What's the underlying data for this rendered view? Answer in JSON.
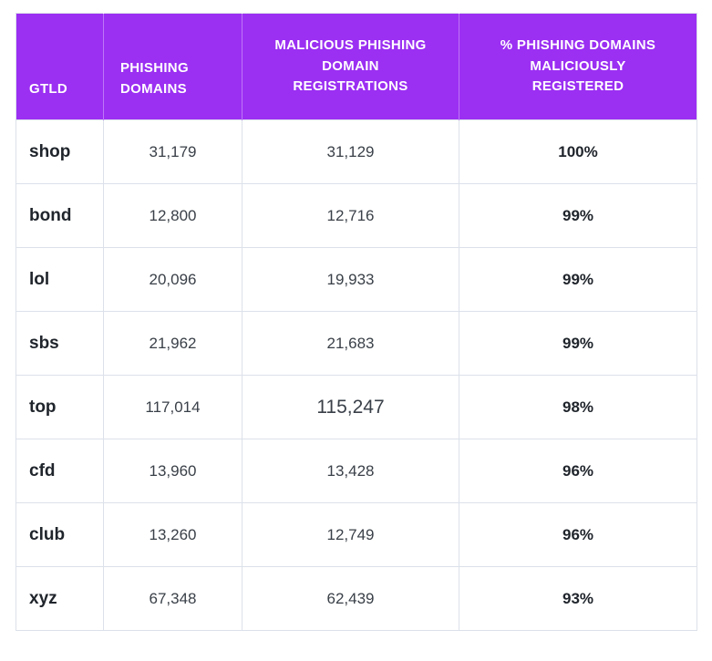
{
  "colors": {
    "header_bg": "#9b2ff2",
    "header_text": "#ffffff",
    "border": "#dce1ea",
    "body_text": "#3a4048",
    "emphasis_text": "#20252c"
  },
  "chart_data": {
    "type": "table",
    "columns": [
      "GTLD",
      "PHISHING DOMAINS",
      "MALICIOUS PHISHING DOMAIN REGISTRATIONS",
      "% PHISHING DOMAINS MALICIOUSLY REGISTERED"
    ],
    "rows": [
      [
        "shop",
        "31,179",
        "31,129",
        "100%"
      ],
      [
        "bond",
        "12,800",
        "12,716",
        "99%"
      ],
      [
        "lol",
        "20,096",
        "19,933",
        "99%"
      ],
      [
        "sbs",
        "21,962",
        "21,683",
        "99%"
      ],
      [
        "top",
        "117,014",
        "115,247",
        "98%"
      ],
      [
        "cfd",
        "13,960",
        "13,428",
        "96%"
      ],
      [
        "club",
        "13,260",
        "12,749",
        "96%"
      ],
      [
        "xyz",
        "67,348",
        "62,439",
        "93%"
      ]
    ]
  }
}
